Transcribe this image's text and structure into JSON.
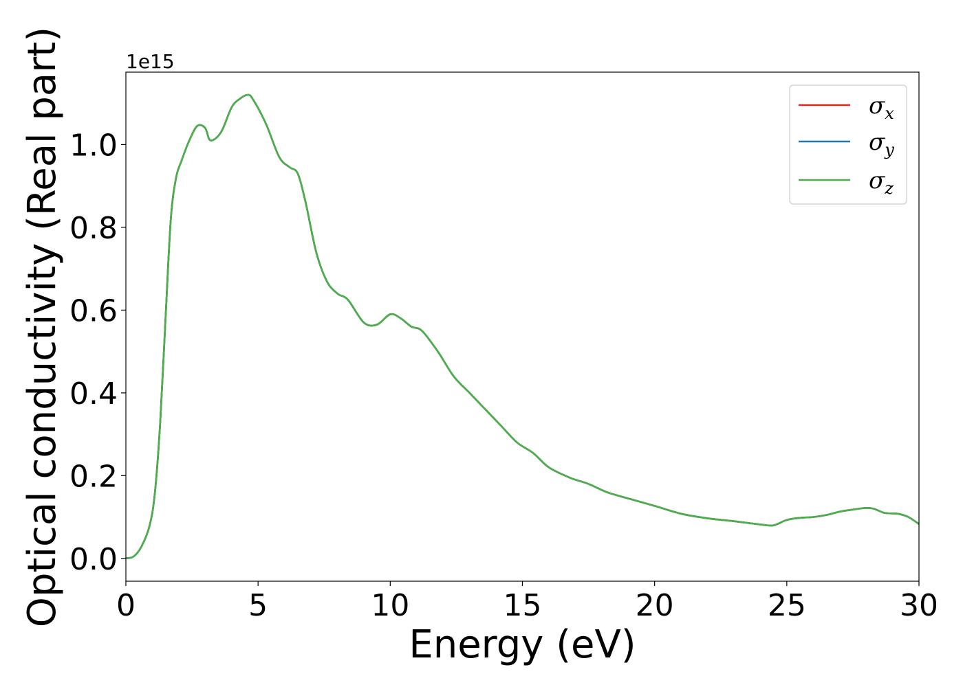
{
  "chart_data": {
    "type": "line",
    "title": "",
    "xlabel": "Energy (eV)",
    "ylabel": "Optical conductivity (Real part)",
    "y_offset_label": "1e15",
    "xlim": [
      0,
      30
    ],
    "ylim": [
      -0.055,
      1.175
    ],
    "x_ticks": [
      0,
      5,
      10,
      15,
      20,
      25,
      30
    ],
    "x_tick_labels": [
      "0",
      "5",
      "10",
      "15",
      "20",
      "25",
      "30"
    ],
    "y_ticks": [
      0.0,
      0.2,
      0.4,
      0.6,
      0.8,
      1.0
    ],
    "y_tick_labels": [
      "0.0",
      "0.2",
      "0.4",
      "0.6",
      "0.8",
      "1.0"
    ],
    "grid": false,
    "legend_position": "top-right",
    "series": [
      {
        "name": "σx",
        "symbol": "σ",
        "subscript": "x",
        "color": "#d62728",
        "x": [
          0,
          0.3,
          0.6,
          0.9,
          1.1,
          1.3,
          1.5,
          1.7,
          1.9,
          2.1,
          2.4,
          2.7,
          3.0,
          3.2,
          3.6,
          4.0,
          4.3,
          4.6,
          4.8,
          5.3,
          5.8,
          6.2,
          6.5,
          6.8,
          7.2,
          7.6,
          8.0,
          8.4,
          9.0,
          9.5,
          10.0,
          10.4,
          10.8,
          11.2,
          11.8,
          12.4,
          13.0,
          13.6,
          14.2,
          14.8,
          15.4,
          16.0,
          16.8,
          17.5,
          18.2,
          19.0,
          20.0,
          21.0,
          22.0,
          23.0,
          24.0,
          24.5,
          25.0,
          25.5,
          26.0,
          26.5,
          27.0,
          27.5,
          28.0,
          28.3,
          28.7,
          29.2,
          29.6,
          30.0
        ],
        "y": [
          0.0,
          0.005,
          0.03,
          0.08,
          0.16,
          0.33,
          0.58,
          0.82,
          0.92,
          0.96,
          1.01,
          1.045,
          1.04,
          1.01,
          1.03,
          1.09,
          1.11,
          1.12,
          1.11,
          1.05,
          0.97,
          0.945,
          0.93,
          0.86,
          0.74,
          0.67,
          0.64,
          0.625,
          0.57,
          0.565,
          0.59,
          0.58,
          0.56,
          0.55,
          0.5,
          0.44,
          0.4,
          0.36,
          0.32,
          0.28,
          0.255,
          0.22,
          0.195,
          0.18,
          0.16,
          0.145,
          0.127,
          0.108,
          0.097,
          0.09,
          0.082,
          0.08,
          0.093,
          0.098,
          0.1,
          0.105,
          0.113,
          0.118,
          0.122,
          0.12,
          0.11,
          0.108,
          0.1,
          0.083
        ]
      },
      {
        "name": "σy",
        "symbol": "σ",
        "subscript": "y",
        "color": "#1f77b4",
        "x": [
          0,
          0.3,
          0.6,
          0.9,
          1.1,
          1.3,
          1.5,
          1.7,
          1.9,
          2.1,
          2.4,
          2.7,
          3.0,
          3.2,
          3.6,
          4.0,
          4.3,
          4.6,
          4.8,
          5.3,
          5.8,
          6.2,
          6.5,
          6.8,
          7.2,
          7.6,
          8.0,
          8.4,
          9.0,
          9.5,
          10.0,
          10.4,
          10.8,
          11.2,
          11.8,
          12.4,
          13.0,
          13.6,
          14.2,
          14.8,
          15.4,
          16.0,
          16.8,
          17.5,
          18.2,
          19.0,
          20.0,
          21.0,
          22.0,
          23.0,
          24.0,
          24.5,
          25.0,
          25.5,
          26.0,
          26.5,
          27.0,
          27.5,
          28.0,
          28.3,
          28.7,
          29.2,
          29.6,
          30.0
        ],
        "y": [
          0.0,
          0.005,
          0.03,
          0.08,
          0.16,
          0.33,
          0.58,
          0.82,
          0.92,
          0.96,
          1.01,
          1.045,
          1.04,
          1.01,
          1.03,
          1.09,
          1.11,
          1.12,
          1.11,
          1.05,
          0.97,
          0.945,
          0.93,
          0.86,
          0.74,
          0.67,
          0.64,
          0.625,
          0.57,
          0.565,
          0.59,
          0.58,
          0.56,
          0.55,
          0.5,
          0.44,
          0.4,
          0.36,
          0.32,
          0.28,
          0.255,
          0.22,
          0.195,
          0.18,
          0.16,
          0.145,
          0.127,
          0.108,
          0.097,
          0.09,
          0.082,
          0.08,
          0.093,
          0.098,
          0.1,
          0.105,
          0.113,
          0.118,
          0.122,
          0.12,
          0.11,
          0.108,
          0.1,
          0.083
        ]
      },
      {
        "name": "σz",
        "symbol": "σ",
        "subscript": "z",
        "color": "#4daf4a",
        "x": [
          0,
          0.3,
          0.6,
          0.9,
          1.1,
          1.3,
          1.5,
          1.7,
          1.9,
          2.1,
          2.4,
          2.7,
          3.0,
          3.2,
          3.6,
          4.0,
          4.3,
          4.6,
          4.8,
          5.3,
          5.8,
          6.2,
          6.5,
          6.8,
          7.2,
          7.6,
          8.0,
          8.4,
          9.0,
          9.5,
          10.0,
          10.4,
          10.8,
          11.2,
          11.8,
          12.4,
          13.0,
          13.6,
          14.2,
          14.8,
          15.4,
          16.0,
          16.8,
          17.5,
          18.2,
          19.0,
          20.0,
          21.0,
          22.0,
          23.0,
          24.0,
          24.5,
          25.0,
          25.5,
          26.0,
          26.5,
          27.0,
          27.5,
          28.0,
          28.3,
          28.7,
          29.2,
          29.6,
          30.0
        ],
        "y": [
          0.0,
          0.005,
          0.03,
          0.08,
          0.16,
          0.33,
          0.58,
          0.82,
          0.92,
          0.96,
          1.01,
          1.045,
          1.04,
          1.01,
          1.03,
          1.09,
          1.11,
          1.12,
          1.11,
          1.05,
          0.97,
          0.945,
          0.93,
          0.86,
          0.74,
          0.67,
          0.64,
          0.625,
          0.57,
          0.565,
          0.59,
          0.58,
          0.56,
          0.55,
          0.5,
          0.44,
          0.4,
          0.36,
          0.32,
          0.28,
          0.255,
          0.22,
          0.195,
          0.18,
          0.16,
          0.145,
          0.127,
          0.108,
          0.097,
          0.09,
          0.082,
          0.08,
          0.093,
          0.098,
          0.1,
          0.105,
          0.113,
          0.118,
          0.122,
          0.12,
          0.11,
          0.108,
          0.1,
          0.083
        ]
      }
    ]
  }
}
